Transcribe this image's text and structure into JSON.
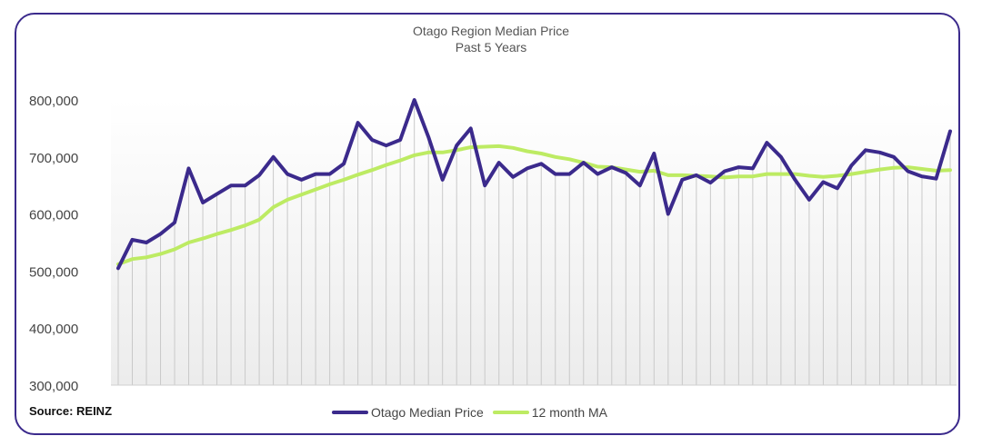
{
  "title_line1": "Otago Region Median Price",
  "title_line2": "Past 5 Years",
  "source": "Source: REINZ",
  "colors": {
    "median": "#3b2a8c",
    "ma": "#bdeb63",
    "frame": "#3b2a8c"
  },
  "chart_data": {
    "type": "line",
    "title": "Otago Region Median Price",
    "subtitle": "Past 5 Years",
    "ylim": [
      300000,
      800000
    ],
    "yticks": [
      "300,000",
      "400,000",
      "500,000",
      "600,000",
      "700,000",
      "800,000"
    ],
    "ytick_values": [
      300000,
      400000,
      500000,
      600000,
      700000,
      800000
    ],
    "legend": "bottom",
    "series": [
      {
        "name": "Otago Median Price",
        "values": [
          505000,
          555000,
          550000,
          565000,
          585000,
          680000,
          620000,
          635000,
          650000,
          650000,
          668000,
          700000,
          670000,
          660000,
          670000,
          670000,
          688000,
          760000,
          730000,
          720000,
          730000,
          800000,
          735000,
          660000,
          720000,
          750000,
          650000,
          690000,
          665000,
          680000,
          688000,
          670000,
          670000,
          690000,
          670000,
          682000,
          672000,
          650000,
          706000,
          600000,
          660000,
          668000,
          655000,
          675000,
          682000,
          680000,
          725000,
          700000,
          660000,
          625000,
          656000,
          645000,
          685000,
          712000,
          708000,
          700000,
          675000,
          666000,
          662000,
          745000
        ]
      },
      {
        "name": "12 month MA",
        "values": [
          512000,
          521000,
          524000,
          530000,
          538000,
          550000,
          557000,
          565000,
          572000,
          580000,
          590000,
          612000,
          625000,
          634000,
          643000,
          652000,
          660000,
          669000,
          677000,
          686000,
          694000,
          703000,
          708000,
          708000,
          712000,
          717000,
          718000,
          719000,
          716000,
          710000,
          706000,
          700000,
          696000,
          690000,
          683000,
          682000,
          678000,
          674000,
          676000,
          668000,
          668000,
          667000,
          666000,
          664000,
          666000,
          666000,
          670000,
          670000,
          670000,
          667000,
          665000,
          667000,
          670000,
          674000,
          678000,
          681000,
          682000,
          679000,
          676000,
          677000
        ]
      }
    ]
  }
}
